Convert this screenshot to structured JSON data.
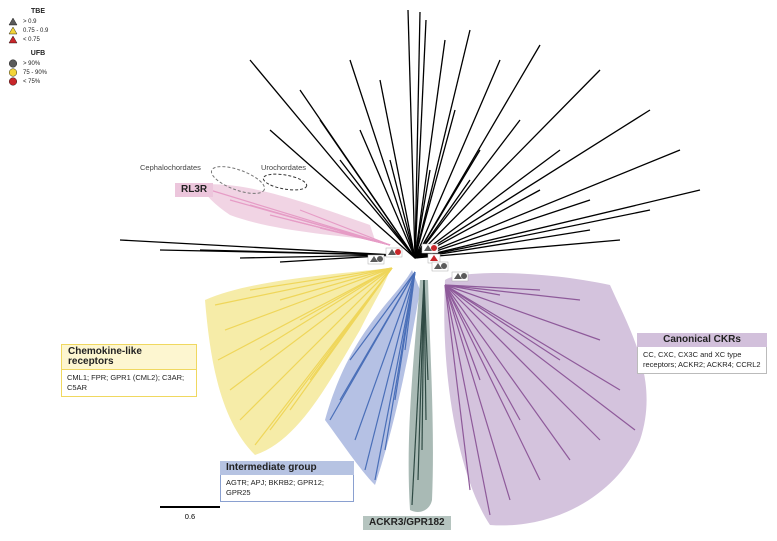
{
  "legend": {
    "tbe_title": "TBE",
    "tbe_items": [
      {
        "label": "> 0.9",
        "color": "#5a5a5a"
      },
      {
        "label": "0.75 - 0.9",
        "color": "#f2d43a"
      },
      {
        "label": "< 0.75",
        "color": "#c8262a"
      }
    ],
    "ufb_title": "UFB",
    "ufb_items": [
      {
        "label": "> 90%",
        "color": "#5a5a5a"
      },
      {
        "label": "75 - 90%",
        "color": "#f2d43a"
      },
      {
        "label": "< 75%",
        "color": "#c8262a"
      }
    ]
  },
  "clades": {
    "rl3r": {
      "title": "RL3R",
      "color": "#ecc6dc"
    },
    "chemokine_like": {
      "title": "Chemokine-like receptors",
      "desc": "CML1; FPR; GPR1 (CML2); C3AR; C5AR",
      "color": "#f5e9a6"
    },
    "intermediate": {
      "title": "Intermediate group",
      "desc": "AGTR; APJ; BKRB2; GPR12; GPR25",
      "color": "#b6c3e2"
    },
    "ackr3": {
      "title": "ACKR3/GPR182",
      "color": "#b5c4bf"
    },
    "canonical": {
      "title": "Canonical CKRs",
      "desc": "CC, CXC, CX3C and XC type receptors; ACKR2; ACKR4; CCRL2",
      "color": "#d2c0db"
    }
  },
  "notes": {
    "cephalochordates": "Cephalochordates",
    "urochordates": "Urochordates"
  },
  "scale_bar": {
    "label": "0.6"
  },
  "colors": {
    "rl3r_branch": "#e69cc6",
    "chemokine_branch": "#efd65a",
    "intermediate_branch": "#4a6fb8",
    "ackr3_branch": "#3d5a53",
    "canonical_branch": "#8e5a9a",
    "outgroup_branch": "#000000"
  }
}
